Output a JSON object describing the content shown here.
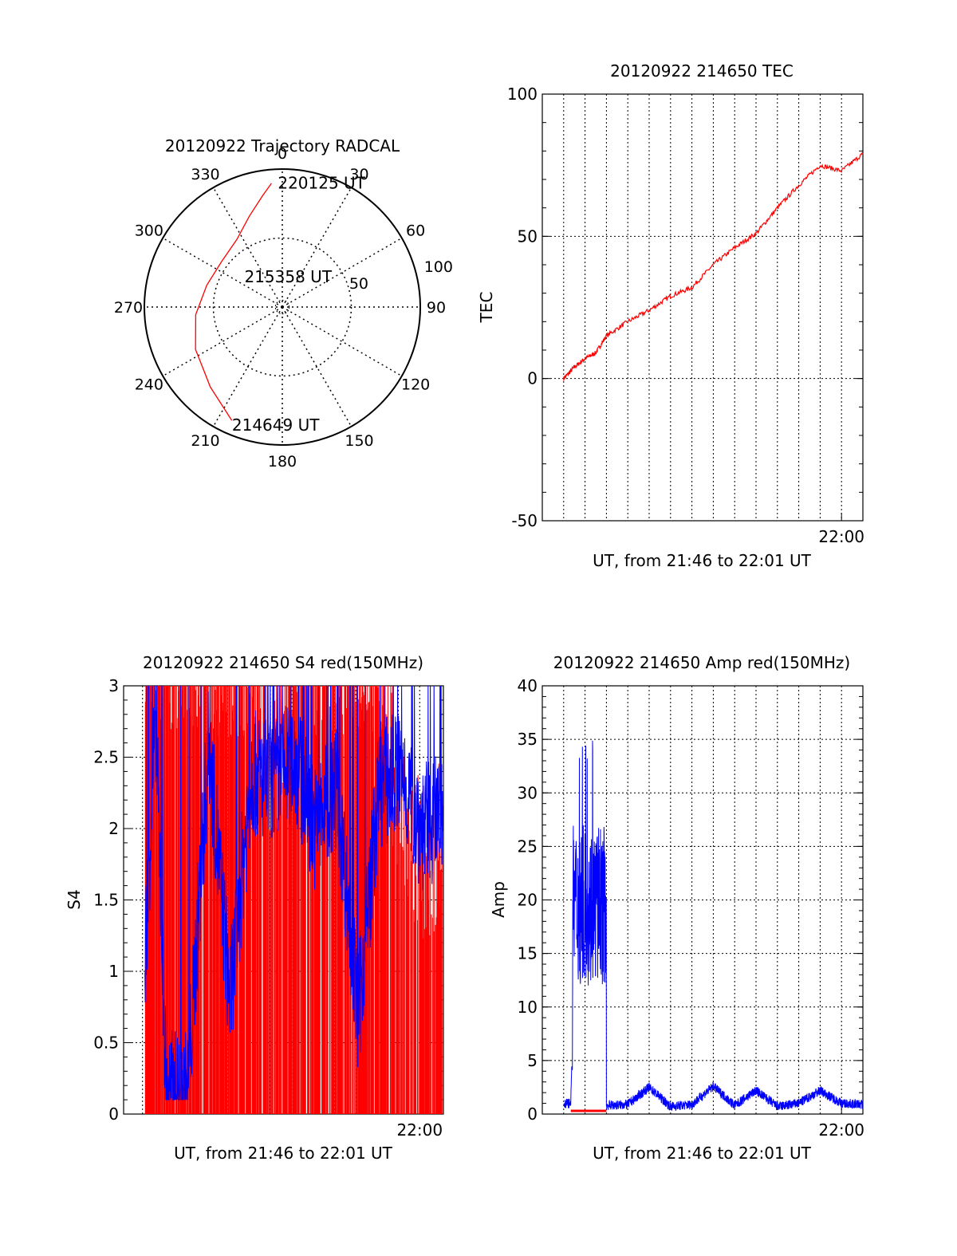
{
  "chart_data": [
    {
      "type": "polar",
      "title": "20120922 Trajectory RADCAL",
      "azimuth_labels": [
        "0",
        "30",
        "60",
        "90",
        "120",
        "150",
        "180",
        "210",
        "240",
        "270",
        "300",
        "330"
      ],
      "radial_labels": [
        "50",
        "100"
      ],
      "rlim": [
        0,
        100
      ],
      "grid": true,
      "series": [
        {
          "color": "#ff0000",
          "points": [
            {
              "az": 204,
              "r": 90
            },
            {
              "az": 222,
              "r": 78
            },
            {
              "az": 244,
              "r": 70
            },
            {
              "az": 265,
              "r": 63
            },
            {
              "az": 286,
              "r": 57
            },
            {
              "az": 307,
              "r": 55
            },
            {
              "az": 326,
              "r": 59
            },
            {
              "az": 340,
              "r": 70
            },
            {
              "az": 350,
              "r": 82
            },
            {
              "az": 355,
              "r": 90
            }
          ]
        }
      ],
      "annotations": [
        {
          "text": "220125 UT",
          "az": 356,
          "r": 90
        },
        {
          "text": "215358 UT",
          "az": 275,
          "r": 19
        },
        {
          "text": "214649 UT",
          "az": 204,
          "r": 90
        }
      ]
    },
    {
      "type": "line",
      "title": "20120922 214650 TEC",
      "xlabel": "UT, from 21:46 to 22:01 UT",
      "ylabel": "TEC",
      "xlim": [
        "21:46",
        "22:01"
      ],
      "ylim": [
        -50,
        100
      ],
      "yticks": [
        "-50",
        "0",
        "50",
        "100"
      ],
      "xticks": [
        "22:00"
      ],
      "grid": true,
      "series": [
        {
          "color": "#ff0000",
          "x": [
            "21:47:00",
            "21:47:30",
            "21:48:00",
            "21:48:30",
            "21:49:00",
            "21:50:00",
            "21:51:00",
            "21:52:00",
            "21:53:00",
            "21:54:00",
            "21:55:00",
            "21:56:00",
            "21:57:00",
            "21:58:00",
            "21:59:00",
            "22:00:00",
            "22:01:00"
          ],
          "y": [
            0,
            4,
            7,
            9,
            15,
            20,
            24,
            29,
            32,
            40,
            46,
            51,
            60,
            68,
            75,
            73,
            79
          ]
        }
      ]
    },
    {
      "type": "line",
      "title": "20120922 214650 S4 red(150MHz)",
      "xlabel": "UT, from 21:46 to 22:01 UT",
      "ylabel": "S4",
      "xlim": [
        "21:46",
        "22:01"
      ],
      "ylim": [
        0,
        3
      ],
      "yticks": [
        "0",
        "0.5",
        "1",
        "1.5",
        "2",
        "2.5",
        "3"
      ],
      "xticks": [
        "22:00"
      ],
      "grid": true,
      "series": [
        {
          "color": "#ff0000",
          "x": [
            "21:47:00",
            "21:48:00",
            "21:49:00",
            "21:50:00",
            "21:51:00",
            "21:52:00",
            "21:53:00",
            "21:54:00",
            "21:55:00",
            "21:56:00",
            "21:57:00",
            "21:58:00",
            "21:59:00",
            "22:00:00",
            "22:01:00"
          ],
          "y": [
            3,
            3,
            3,
            3,
            3,
            3,
            2.2,
            3,
            3,
            3,
            3,
            3,
            1.8,
            1.5,
            1.7
          ]
        },
        {
          "color": "#0000ff",
          "x": [
            "21:47:00",
            "21:47:30",
            "21:48:00",
            "21:49:00",
            "21:50:00",
            "21:51:00",
            "21:52:00",
            "21:53:00",
            "21:54:00",
            "21:55:00",
            "21:56:00",
            "21:57:00",
            "21:58:00",
            "21:59:00",
            "22:00:00",
            "22:01:00"
          ],
          "y": [
            1.1,
            2.8,
            0.15,
            0.15,
            2.6,
            0.8,
            2.4,
            2.3,
            2.5,
            2.0,
            2.3,
            0.7,
            2.3,
            2.4,
            2.0,
            2.1
          ]
        }
      ]
    },
    {
      "type": "line",
      "title": "20120922 214650 Amp red(150MHz)",
      "xlabel": "UT, from 21:46 to 22:01 UT",
      "ylabel": "Amp",
      "xlim": [
        "21:46",
        "22:01"
      ],
      "ylim": [
        0,
        40
      ],
      "yticks": [
        "0",
        "5",
        "10",
        "15",
        "20",
        "25",
        "30",
        "35",
        "40"
      ],
      "xticks": [
        "22:00"
      ],
      "grid": true,
      "series": [
        {
          "color": "#0000ff",
          "x": [
            "21:47:00",
            "21:47:20",
            "21:47:40",
            "21:48:00",
            "21:48:20",
            "21:48:40",
            "21:49:00",
            "21:50:00",
            "21:51:00",
            "21:52:00",
            "21:53:00",
            "21:54:00",
            "21:55:00",
            "21:56:00",
            "21:57:00",
            "21:58:00",
            "21:59:00",
            "22:00:00",
            "22:01:00"
          ],
          "y": [
            1,
            1,
            36,
            25,
            14,
            26,
            0.8,
            0.9,
            2.5,
            0.7,
            0.9,
            2.6,
            0.8,
            2.2,
            0.7,
            1.0,
            2.2,
            1.0,
            0.9
          ]
        },
        {
          "color": "#ff0000",
          "x": [
            "21:47:20",
            "21:49:00"
          ],
          "y": [
            0.3,
            0.3
          ]
        }
      ]
    }
  ]
}
